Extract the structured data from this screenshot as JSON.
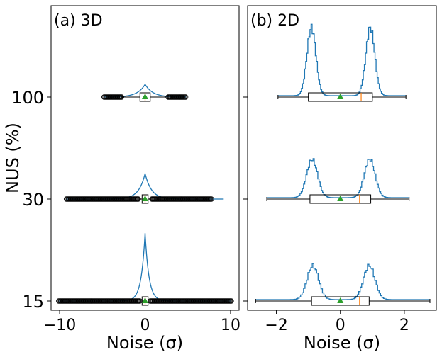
{
  "chart_data": [
    {
      "type": "histogram-boxplot",
      "panel_label": "(a) 3D",
      "xlabel": "Noise (σ)",
      "ylabel": "NUS (%)",
      "xlim": [
        -11,
        11
      ],
      "x_ticks": [
        -10,
        0,
        10
      ],
      "y_categories": [
        "100",
        "30",
        "15"
      ],
      "distribution": "unimodal",
      "rows": [
        {
          "nus": "100",
          "whisker_low": -2.7,
          "q1": -0.6,
          "median": 0.0,
          "q3": 0.6,
          "whisker_high": 2.7,
          "mean": 0.0,
          "outlier_range": [
            -4.8,
            4.8
          ],
          "hist_sigma": 0.9,
          "hist_peak_rel": 0.15
        },
        {
          "nus": "30",
          "whisker_low": -0.8,
          "q1": -0.35,
          "median": 0.0,
          "q3": 0.35,
          "whisker_high": 0.8,
          "mean": 0.0,
          "outlier_range": [
            -9.2,
            7.8
          ],
          "hist_sigma": 0.75,
          "hist_peak_rel": 0.3
        },
        {
          "nus": "15",
          "whisker_low": -0.6,
          "q1": -0.35,
          "median": 0.0,
          "q3": 0.35,
          "whisker_high": 0.6,
          "mean": 0.0,
          "outlier_range": [
            -10.1,
            10.1
          ],
          "hist_sigma": 0.45,
          "hist_peak_rel": 0.8
        }
      ]
    },
    {
      "type": "histogram-boxplot",
      "panel_label": "(b) 2D",
      "xlabel": "Noise (σ)",
      "ylabel": "",
      "xlim": [
        -2.9,
        3.0
      ],
      "x_ticks": [
        -2,
        0,
        2
      ],
      "y_categories": [
        "100",
        "30",
        "15"
      ],
      "distribution": "bimodal",
      "rows": [
        {
          "nus": "100",
          "whisker_low": -1.95,
          "q1": -1.0,
          "median": 0.65,
          "q3": 1.0,
          "whisker_high": 2.05,
          "mean": 0.0,
          "modes": [
            -0.92,
            0.92
          ],
          "mode_sigma": 0.14,
          "hist_peak_rel": 0.8
        },
        {
          "nus": "30",
          "whisker_low": -2.3,
          "q1": -0.95,
          "median": 0.6,
          "q3": 0.95,
          "whisker_high": 2.15,
          "mean": 0.0,
          "modes": [
            -0.9,
            0.9
          ],
          "mode_sigma": 0.17,
          "hist_peak_rel": 0.45
        },
        {
          "nus": "15",
          "whisker_low": -2.65,
          "q1": -0.9,
          "median": 0.6,
          "q3": 0.9,
          "whisker_high": 2.8,
          "mean": 0.0,
          "modes": [
            -0.88,
            0.88
          ],
          "mode_sigma": 0.18,
          "hist_peak_rel": 0.4
        }
      ]
    }
  ],
  "colors": {
    "hist": "#1f77b4",
    "mean_marker": "#2ca02c",
    "median_line": "#ff7f0e",
    "box": "#000000"
  }
}
